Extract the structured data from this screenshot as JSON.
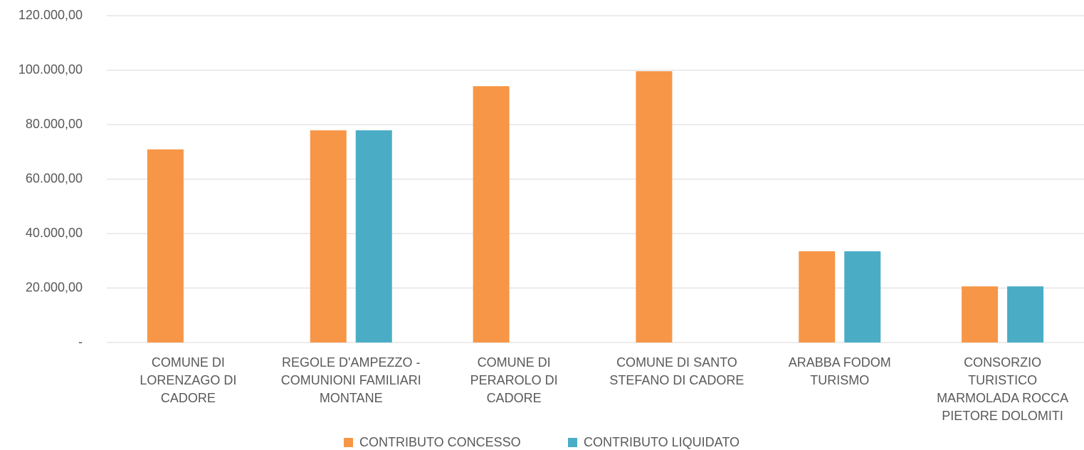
{
  "chart_data": {
    "type": "bar",
    "categories": [
      "COMUNE DI LORENZAGO DI CADORE",
      "REGOLE D'AMPEZZO - COMUNIONI FAMILIARI MONTANE",
      "COMUNE DI PERAROLO DI CADORE",
      "COMUNE DI SANTO STEFANO DI CADORE",
      "ARABBA FODOM TURISMO",
      "CONSORZIO TURISTICO MARMOLADA ROCCA PIETORE DOLOMITI"
    ],
    "series": [
      {
        "name": "CONTRIBUTO CONCESSO",
        "color": "#f79646",
        "values": [
          70900,
          77900,
          94100,
          99600,
          33500,
          20600
        ]
      },
      {
        "name": "CONTRIBUTO LIQUIDATO",
        "color": "#4bacc6",
        "values": [
          null,
          77900,
          null,
          null,
          33500,
          20600
        ]
      }
    ],
    "ylim": [
      0,
      120000
    ],
    "yticks": [
      {
        "value": 0,
        "label": "-"
      },
      {
        "value": 20000,
        "label": "20.000,00"
      },
      {
        "value": 40000,
        "label": "40.000,00"
      },
      {
        "value": 60000,
        "label": "60.000,00"
      },
      {
        "value": 80000,
        "label": "80.000,00"
      },
      {
        "value": 100000,
        "label": "100.000,00"
      },
      {
        "value": 120000,
        "label": "120.000,00"
      }
    ],
    "grid": true,
    "legend": "bottom"
  }
}
